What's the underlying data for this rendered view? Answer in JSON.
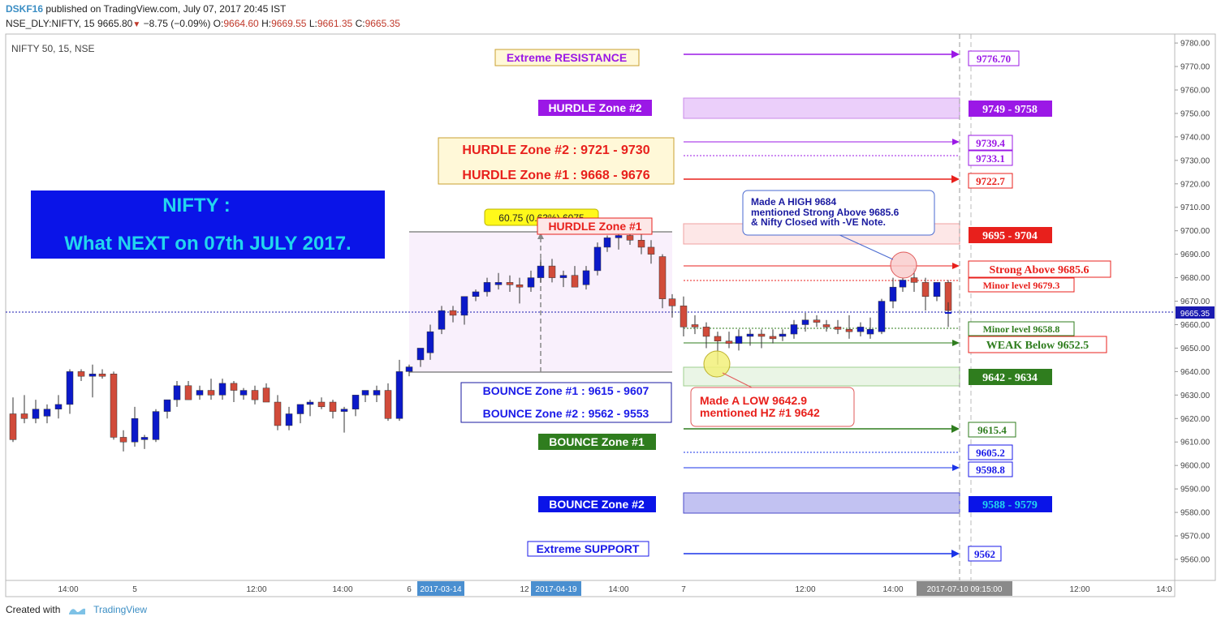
{
  "header": {
    "user": "DSKF16",
    "published": "published on TradingView.com, July 07, 2017 20:45 IST",
    "symbol": "NSE_DLY:NIFTY, 15",
    "last": "9665.80",
    "change": "−8.75 (−0.09%)",
    "o_label": "O:",
    "o": "9664.60",
    "h_label": "H:",
    "h": "9669.55",
    "l_label": "L:",
    "l": "9661.35",
    "c_label": "C:",
    "c": "9665.35"
  },
  "footer": {
    "created_with": "Created with",
    "brand": "TradingView"
  },
  "colors": {
    "up": "#0b19c9",
    "down": "#d14b3a",
    "purple": "#9b18e6",
    "red": "#e8201c",
    "green": "#2f7d1e",
    "blue": "#1a33e8",
    "current": "#1a1ab0"
  },
  "chart_data": {
    "type": "candlestick",
    "title": "NIFTY 50, 15, NSE",
    "ylim": [
      9550,
      9785
    ],
    "yticks": [
      9560,
      9570,
      9580,
      9590,
      9600,
      9610,
      9620,
      9630,
      9640,
      9650,
      9660,
      9670,
      9680,
      9690,
      9700,
      9710,
      9720,
      9730,
      9740,
      9750,
      9760,
      9770,
      9780
    ],
    "current_price": "9665.35",
    "xticks": [
      "14:00",
      "5",
      "12:00",
      "14:00",
      "6",
      "12",
      "14:00",
      "7",
      "12:00",
      "14:00",
      "12:00",
      "14:0"
    ],
    "x_highlight": [
      "2017-03-14",
      "2017-04-19",
      "2017-07-10 09:15:00"
    ],
    "candles": [
      [
        9622,
        9629,
        9610,
        9611
      ],
      [
        9622,
        9630,
        9618,
        9620
      ],
      [
        9620,
        9628,
        9618,
        9624
      ],
      [
        9621,
        9626,
        9618,
        9624
      ],
      [
        9624,
        9630,
        9620,
        9626
      ],
      [
        9626,
        9641,
        9622,
        9640
      ],
      [
        9640,
        9641,
        9636,
        9638
      ],
      [
        9638,
        9643,
        9629,
        9639
      ],
      [
        9639,
        9641,
        9637,
        9638
      ],
      [
        9639,
        9640,
        9611,
        9612
      ],
      [
        9612,
        9615,
        9606,
        9610
      ],
      [
        9610,
        9625,
        9608,
        9620
      ],
      [
        9611,
        9613,
        9607,
        9612
      ],
      [
        9611,
        9624,
        9610,
        9623
      ],
      [
        9623,
        9628,
        9620,
        9628
      ],
      [
        9628,
        9636,
        9625,
        9634
      ],
      [
        9634,
        9636,
        9628,
        9628
      ],
      [
        9630,
        9634,
        9628,
        9632
      ],
      [
        9632,
        9637,
        9628,
        9630
      ],
      [
        9630,
        9637,
        9628,
        9635
      ],
      [
        9635,
        9636,
        9627,
        9632
      ],
      [
        9630,
        9633,
        9628,
        9632
      ],
      [
        9632,
        9634,
        9626,
        9628
      ],
      [
        9633,
        9635,
        9627,
        9627
      ],
      [
        9627,
        9630,
        9615,
        9617
      ],
      [
        9617,
        9625,
        9615,
        9622
      ],
      [
        9622,
        9625,
        9618,
        9626
      ],
      [
        9626,
        9628,
        9621,
        9627
      ],
      [
        9627,
        9629,
        9624,
        9625
      ],
      [
        9627,
        9628,
        9620,
        9623
      ],
      [
        9623,
        9625,
        9614,
        9624
      ],
      [
        9624,
        9630,
        9621,
        9630
      ],
      [
        9630,
        9632,
        9627,
        9632
      ],
      [
        9630,
        9634,
        9627,
        9632
      ],
      [
        9632,
        9635,
        9619,
        9620
      ],
      [
        9620,
        9645,
        9619,
        9640
      ],
      [
        9640,
        9643,
        9638,
        9642
      ],
      [
        9645,
        9650,
        9642,
        9650
      ],
      [
        9648,
        9660,
        9645,
        9657
      ],
      [
        9658,
        9668,
        9656,
        9666
      ],
      [
        9666,
        9668,
        9661,
        9664
      ],
      [
        9664,
        9672,
        9660,
        9672
      ],
      [
        9672,
        9675,
        9670,
        9674
      ],
      [
        9674,
        9680,
        9672,
        9678
      ],
      [
        9677,
        9682,
        9675,
        9678
      ],
      [
        9678,
        9681,
        9674,
        9677
      ],
      [
        9677,
        9680,
        9669,
        9676
      ],
      [
        9676,
        9683,
        9674,
        9680
      ],
      [
        9680,
        9688,
        9678,
        9685
      ],
      [
        9685,
        9688,
        9678,
        9680
      ],
      [
        9680,
        9683,
        9676,
        9681
      ],
      [
        9681,
        9685,
        9677,
        9676
      ],
      [
        9677,
        9685,
        9675,
        9683
      ],
      [
        9683,
        9695,
        9681,
        9693
      ],
      [
        9693,
        9698,
        9691,
        9697
      ],
      [
        9697,
        9700,
        9692,
        9698
      ],
      [
        9698,
        9700,
        9694,
        9696
      ],
      [
        9696,
        9700,
        9690,
        9693
      ],
      [
        9693,
        9696,
        9686,
        9690
      ],
      [
        9689,
        9690,
        9667,
        9671
      ],
      [
        9671,
        9673,
        9663,
        9668
      ],
      [
        9668,
        9672,
        9655,
        9659
      ],
      [
        9660,
        9664,
        9656,
        9659
      ],
      [
        9659,
        9661,
        9650,
        9655
      ],
      [
        9655,
        9657,
        9643,
        9653
      ],
      [
        9653,
        9657,
        9650,
        9652
      ],
      [
        9652,
        9658,
        9649,
        9655
      ],
      [
        9655,
        9658,
        9651,
        9656
      ],
      [
        9656,
        9658,
        9650,
        9655
      ],
      [
        9655,
        9658,
        9652,
        9654
      ],
      [
        9655,
        9658,
        9653,
        9656
      ],
      [
        9656,
        9662,
        9654,
        9660
      ],
      [
        9660,
        9665,
        9657,
        9662
      ],
      [
        9662,
        9664,
        9659,
        9661
      ],
      [
        9660,
        9662,
        9657,
        9659
      ],
      [
        9659,
        9662,
        9656,
        9658
      ],
      [
        9658,
        9664,
        9654,
        9657
      ],
      [
        9657,
        9661,
        9655,
        9659
      ],
      [
        9656,
        9663,
        9654,
        9658
      ],
      [
        9657,
        9671,
        9656,
        9670
      ],
      [
        9670,
        9680,
        9667,
        9676
      ],
      [
        9676,
        9680,
        9674,
        9679
      ],
      [
        9680,
        9684,
        9674,
        9678
      ],
      [
        9678,
        9680,
        9666,
        9672
      ],
      [
        9672,
        9678,
        9670,
        9678
      ],
      [
        9678,
        9679,
        9659,
        9666
      ],
      [
        9664.6,
        9669.55,
        9661.35,
        9665.35
      ]
    ],
    "candle_x": [
      16,
      30,
      44,
      58,
      72,
      86,
      100,
      114,
      126,
      140,
      152,
      166,
      178,
      192,
      206,
      218,
      232,
      246,
      260,
      274,
      288,
      300,
      314,
      328,
      342,
      356,
      370,
      382,
      396,
      410,
      424,
      438,
      450,
      464,
      478,
      492,
      504,
      518,
      530,
      544,
      558,
      572,
      586,
      600,
      614,
      628,
      640,
      654,
      666,
      680,
      694,
      708,
      722,
      736,
      748,
      762,
      776,
      790,
      802,
      816,
      828,
      842,
      856,
      870,
      884,
      898,
      910,
      924,
      938,
      952,
      964,
      978,
      992,
      1006,
      1018,
      1032,
      1046,
      1060,
      1072,
      1086,
      1100,
      1112,
      1126,
      1140,
      1154,
      1168,
      1168
    ]
  },
  "annotations": {
    "title_box": {
      "line1": "NIFTY :",
      "line2": "What NEXT on 07th JULY 2017."
    },
    "measure_label": "60.75 (0.63%) 6075",
    "hurdle_zone_1_small": "HURDLE Zone #1",
    "extreme_resistance": "Extreme RESISTANCE",
    "hurdle_zone_2_tag": "HURDLE Zone #2",
    "hurdle_box_l1": "HURDLE Zone #2 : 9721 - 9730",
    "hurdle_box_l2": "HURDLE Zone #1 : 9668 - 9676",
    "bounce_box_l1": "BOUNCE Zone #1 : 9615 - 9607",
    "bounce_box_l2": "BOUNCE Zone #2 : 9562 - 9553",
    "bounce_zone_1_tag": "BOUNCE Zone #1",
    "bounce_zone_2_tag": "BOUNCE Zone #2",
    "extreme_support": "Extreme SUPPORT",
    "callout_high_1": "Made A HIGH 9684",
    "callout_high_2": "mentioned Strong Above 9685.6",
    "callout_high_3": "& Nifty Closed with -VE Note.",
    "callout_low_1": "Made A LOW 9642.9",
    "callout_low_2": "mentioned HZ #1 9642",
    "level_9776": "9776.70",
    "level_9749": "9749 - 9758",
    "level_9739": "9739.4",
    "level_9733": "9733.1",
    "level_9722": "9722.7",
    "level_9695": "9695 - 9704",
    "level_strong": "Strong  Above 9685.6",
    "level_minor_9679": "Minor level 9679.3",
    "level_minor_9658": "Minor level 9658.8",
    "level_weak": "WEAK Below 9652.5",
    "level_9642": "9642 - 9634",
    "level_9615": "9615.4",
    "level_9605": "9605.2",
    "level_9598": "9598.8",
    "level_9588": "9588 - 9579",
    "level_9562": "9562"
  }
}
